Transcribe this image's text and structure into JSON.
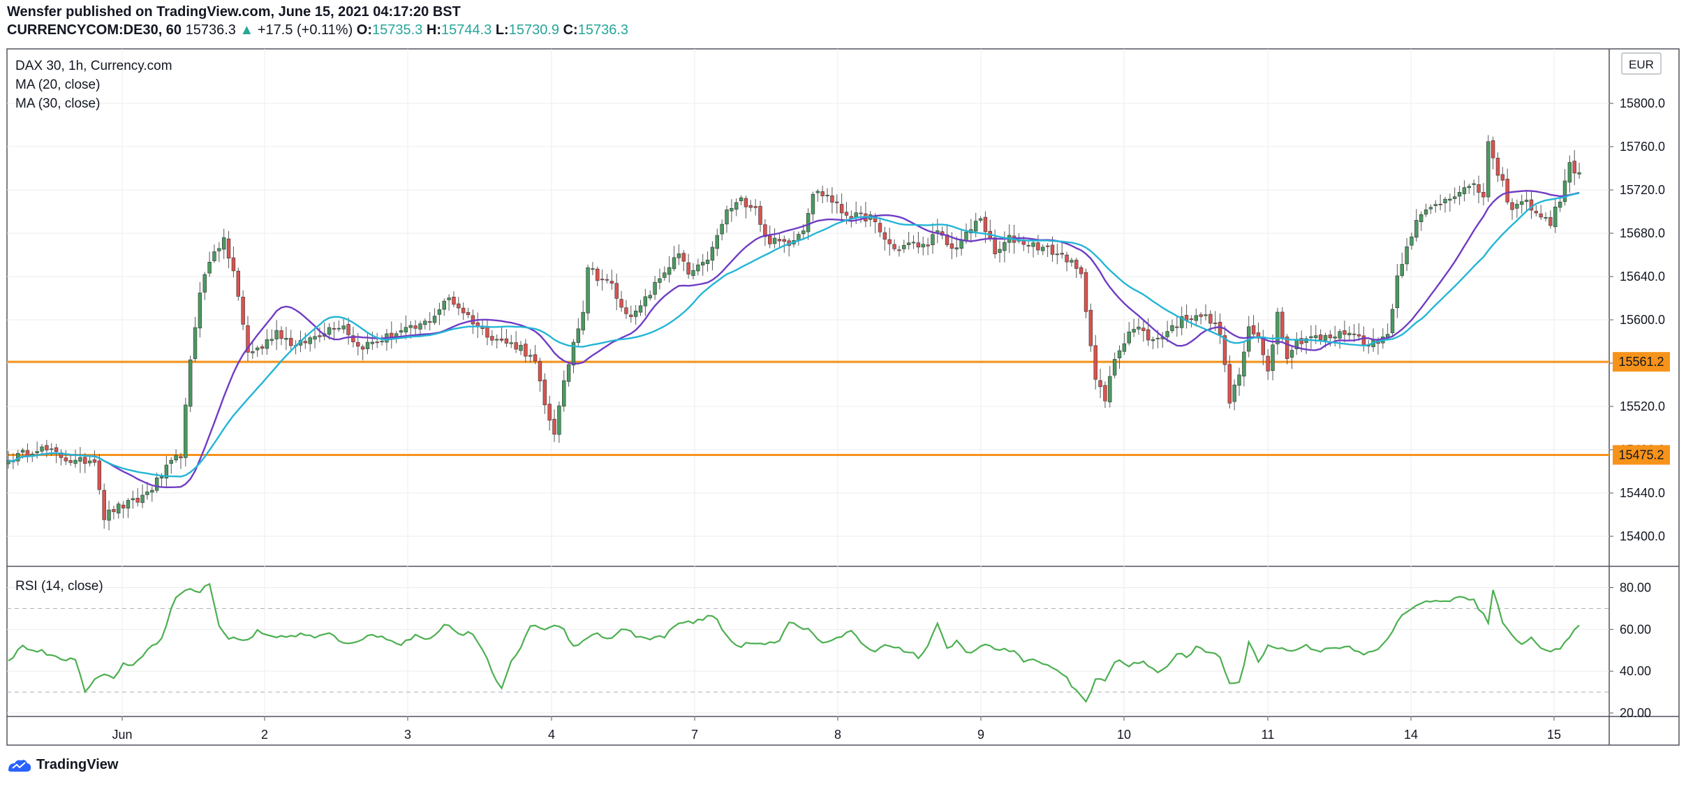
{
  "header": {
    "published": "Wensfer published on TradingView.com, June 15, 2021 04:17:20 BST",
    "symbol": "CURRENCYCOM:DE30, 60",
    "last": "15736.3",
    "change_arrow": "▲",
    "change": "+17.5 (+0.11%)",
    "o_label": "O:",
    "o_value": "15735.3",
    "h_label": "H:",
    "h_value": "15744.3",
    "l_label": "L:",
    "l_value": "15730.9",
    "c_label": "C:",
    "c_value": "15736.3"
  },
  "legend": {
    "title": "DAX 30, 1h, Currency.com",
    "ma20": "MA (20, close)",
    "ma30": "MA (30, close)",
    "rsi": "RSI (14, close)",
    "currency": "EUR"
  },
  "footer": {
    "brand": "TradingView"
  },
  "colors": {
    "up": "#4a9a60",
    "down": "#d9534f",
    "ma20": "#6f3cc4",
    "ma30": "#22b5d6",
    "rsi": "#4caf50",
    "level": "#f7931a"
  },
  "chart_data": [
    {
      "type": "candlestick",
      "title": "DAX 30, 1h, Currency.com",
      "ylim": [
        15365,
        15830
      ],
      "y_ticks": [
        15400,
        15440,
        15480,
        15520,
        15560,
        15600,
        15640,
        15680,
        15720,
        15760,
        15800
      ],
      "y_tick_labels": [
        "15400.0",
        "15440.0",
        "15480.0",
        "15520.0",
        "15560.0",
        "15600.0",
        "15640.0",
        "15680.0",
        "15720.0",
        "15760.0",
        "15800.0"
      ],
      "x_tick_labels": [
        "Jun",
        "2",
        "3",
        "4",
        "7",
        "8",
        "9",
        "10",
        "11",
        "14",
        "15"
      ],
      "horizontal_levels": [
        {
          "value": 15561.2,
          "label": "15561.2"
        },
        {
          "value": 15475.2,
          "label": "15475.2"
        }
      ],
      "ohlc_keypoints": [
        [
          0,
          15470
        ],
        [
          6,
          15482
        ],
        [
          10,
          15476
        ],
        [
          14,
          15468
        ],
        [
          18,
          15472
        ],
        [
          20,
          15418
        ],
        [
          22,
          15425
        ],
        [
          27,
          15433
        ],
        [
          30,
          15445
        ],
        [
          33,
          15462
        ],
        [
          36,
          15476
        ],
        [
          38,
          15560
        ],
        [
          40,
          15628
        ],
        [
          43,
          15665
        ],
        [
          45,
          15672
        ],
        [
          47,
          15645
        ],
        [
          50,
          15570
        ],
        [
          53,
          15575
        ],
        [
          56,
          15590
        ],
        [
          60,
          15575
        ],
        [
          64,
          15585
        ],
        [
          68,
          15595
        ],
        [
          70,
          15595
        ],
        [
          73,
          15575
        ],
        [
          77,
          15580
        ],
        [
          81,
          15588
        ],
        [
          85,
          15592
        ],
        [
          88,
          15600
        ],
        [
          92,
          15620
        ],
        [
          95,
          15608
        ],
        [
          99,
          15590
        ],
        [
          103,
          15580
        ],
        [
          107,
          15575
        ],
        [
          110,
          15560
        ],
        [
          112,
          15520
        ],
        [
          114,
          15497
        ],
        [
          116,
          15540
        ],
        [
          118,
          15580
        ],
        [
          120,
          15610
        ],
        [
          121,
          15650
        ],
        [
          123,
          15640
        ],
        [
          126,
          15632
        ],
        [
          128,
          15610
        ],
        [
          131,
          15605
        ],
        [
          134,
          15625
        ],
        [
          137,
          15645
        ],
        [
          140,
          15660
        ],
        [
          142,
          15642
        ],
        [
          145,
          15650
        ],
        [
          147,
          15665
        ],
        [
          150,
          15700
        ],
        [
          153,
          15710
        ],
        [
          156,
          15705
        ],
        [
          158,
          15675
        ],
        [
          160,
          15672
        ],
        [
          163,
          15672
        ],
        [
          166,
          15685
        ],
        [
          168,
          15718
        ],
        [
          171,
          15715
        ],
        [
          174,
          15700
        ],
        [
          177,
          15695
        ],
        [
          180,
          15695
        ],
        [
          182,
          15680
        ],
        [
          185,
          15665
        ],
        [
          188,
          15670
        ],
        [
          191,
          15668
        ],
        [
          194,
          15680
        ],
        [
          197,
          15665
        ],
        [
          200,
          15678
        ],
        [
          203,
          15695
        ],
        [
          206,
          15660
        ],
        [
          209,
          15675
        ],
        [
          212,
          15672
        ],
        [
          215,
          15668
        ],
        [
          218,
          15663
        ],
        [
          221,
          15657
        ],
        [
          224,
          15640
        ],
        [
          225,
          15610
        ],
        [
          226,
          15580
        ],
        [
          227,
          15545
        ],
        [
          229,
          15525
        ],
        [
          231,
          15565
        ],
        [
          234,
          15590
        ],
        [
          236,
          15592
        ],
        [
          239,
          15580
        ],
        [
          242,
          15590
        ],
        [
          245,
          15600
        ],
        [
          248,
          15606
        ],
        [
          250,
          15602
        ],
        [
          253,
          15590
        ],
        [
          254,
          15555
        ],
        [
          255,
          15525
        ],
        [
          257,
          15550
        ],
        [
          259,
          15590
        ],
        [
          261,
          15582
        ],
        [
          263,
          15555
        ],
        [
          265,
          15606
        ],
        [
          267,
          15568
        ],
        [
          269,
          15580
        ],
        [
          272,
          15585
        ],
        [
          274,
          15582
        ],
        [
          277,
          15585
        ],
        [
          280,
          15590
        ],
        [
          283,
          15580
        ],
        [
          286,
          15578
        ],
        [
          288,
          15590
        ],
        [
          289,
          15610
        ],
        [
          290,
          15640
        ],
        [
          292,
          15670
        ],
        [
          294,
          15690
        ],
        [
          296,
          15700
        ],
        [
          300,
          15712
        ],
        [
          303,
          15720
        ],
        [
          306,
          15722
        ],
        [
          308,
          15715
        ],
        [
          309,
          15765
        ],
        [
          311,
          15730
        ],
        [
          312,
          15725
        ],
        [
          314,
          15700
        ],
        [
          316,
          15710
        ],
        [
          318,
          15705
        ],
        [
          320,
          15695
        ],
        [
          322,
          15690
        ],
        [
          324,
          15712
        ],
        [
          326,
          15742
        ],
        [
          328,
          15736
        ]
      ],
      "series": [
        {
          "name": "MA (20, close)"
        },
        {
          "name": "MA (30, close)"
        }
      ]
    },
    {
      "type": "line",
      "title": "RSI (14, close)",
      "ylim": [
        15,
        90
      ],
      "y_ticks": [
        20,
        40,
        60,
        80
      ],
      "y_tick_labels": [
        "20.00",
        "40.00",
        "60.00",
        "80.00"
      ],
      "bands": [
        30,
        70
      ],
      "rsi_keypoints": [
        [
          0,
          45
        ],
        [
          3,
          52
        ],
        [
          6,
          50
        ],
        [
          9,
          48
        ],
        [
          12,
          46
        ],
        [
          14,
          45
        ],
        [
          16,
          31
        ],
        [
          18,
          36
        ],
        [
          20,
          38
        ],
        [
          22,
          37
        ],
        [
          24,
          44
        ],
        [
          26,
          42
        ],
        [
          28,
          48
        ],
        [
          30,
          53
        ],
        [
          32,
          55
        ],
        [
          34,
          71
        ],
        [
          36,
          78
        ],
        [
          38,
          79
        ],
        [
          40,
          78
        ],
        [
          42,
          82
        ],
        [
          44,
          62
        ],
        [
          46,
          55
        ],
        [
          48,
          56
        ],
        [
          50,
          55
        ],
        [
          52,
          59
        ],
        [
          55,
          57
        ],
        [
          58,
          56
        ],
        [
          61,
          58
        ],
        [
          64,
          56
        ],
        [
          67,
          58
        ],
        [
          70,
          53
        ],
        [
          73,
          55
        ],
        [
          76,
          57
        ],
        [
          79,
          56
        ],
        [
          82,
          53
        ],
        [
          85,
          57
        ],
        [
          88,
          55
        ],
        [
          91,
          63
        ],
        [
          94,
          58
        ],
        [
          97,
          58
        ],
        [
          100,
          45
        ],
        [
          103,
          31
        ],
        [
          105,
          44
        ],
        [
          107,
          52
        ],
        [
          109,
          62
        ],
        [
          111,
          60
        ],
        [
          114,
          62
        ],
        [
          116,
          60
        ],
        [
          118,
          52
        ],
        [
          120,
          55
        ],
        [
          123,
          58
        ],
        [
          126,
          55
        ],
        [
          128,
          61
        ],
        [
          131,
          57
        ],
        [
          134,
          55
        ],
        [
          137,
          57
        ],
        [
          140,
          63
        ],
        [
          143,
          63
        ],
        [
          146,
          66
        ],
        [
          148,
          65
        ],
        [
          150,
          57
        ],
        [
          152,
          52
        ],
        [
          155,
          53
        ],
        [
          158,
          53
        ],
        [
          161,
          55
        ],
        [
          163,
          64
        ],
        [
          166,
          61
        ],
        [
          168,
          58
        ],
        [
          170,
          53
        ],
        [
          173,
          56
        ],
        [
          176,
          59
        ],
        [
          178,
          53
        ],
        [
          181,
          50
        ],
        [
          184,
          53
        ],
        [
          187,
          50
        ],
        [
          190,
          47
        ],
        [
          192,
          52
        ],
        [
          194,
          62
        ],
        [
          196,
          51
        ],
        [
          198,
          54
        ],
        [
          201,
          48
        ],
        [
          204,
          53
        ],
        [
          207,
          50
        ],
        [
          210,
          50
        ],
        [
          212,
          44
        ],
        [
          214,
          45
        ],
        [
          217,
          44
        ],
        [
          219,
          40
        ],
        [
          221,
          37
        ],
        [
          223,
          30
        ],
        [
          225,
          26
        ],
        [
          227,
          36
        ],
        [
          229,
          35
        ],
        [
          231,
          45
        ],
        [
          234,
          43
        ],
        [
          237,
          44
        ],
        [
          240,
          40
        ],
        [
          242,
          43
        ],
        [
          244,
          48
        ],
        [
          246,
          47
        ],
        [
          248,
          51
        ],
        [
          251,
          49
        ],
        [
          253,
          47
        ],
        [
          255,
          34
        ],
        [
          257,
          34
        ],
        [
          259,
          54
        ],
        [
          261,
          45
        ],
        [
          263,
          52
        ],
        [
          265,
          51
        ],
        [
          268,
          50
        ],
        [
          271,
          52
        ],
        [
          274,
          50
        ],
        [
          277,
          52
        ],
        [
          280,
          51
        ],
        [
          283,
          48
        ],
        [
          285,
          49
        ],
        [
          288,
          55
        ],
        [
          291,
          67
        ],
        [
          294,
          72
        ],
        [
          297,
          73
        ],
        [
          300,
          74
        ],
        [
          303,
          75
        ],
        [
          306,
          74
        ],
        [
          309,
          63
        ],
        [
          310,
          78
        ],
        [
          312,
          64
        ],
        [
          314,
          58
        ],
        [
          316,
          52
        ],
        [
          318,
          56
        ],
        [
          320,
          52
        ],
        [
          322,
          50
        ],
        [
          324,
          51
        ],
        [
          326,
          56
        ],
        [
          328,
          62
        ]
      ]
    }
  ]
}
